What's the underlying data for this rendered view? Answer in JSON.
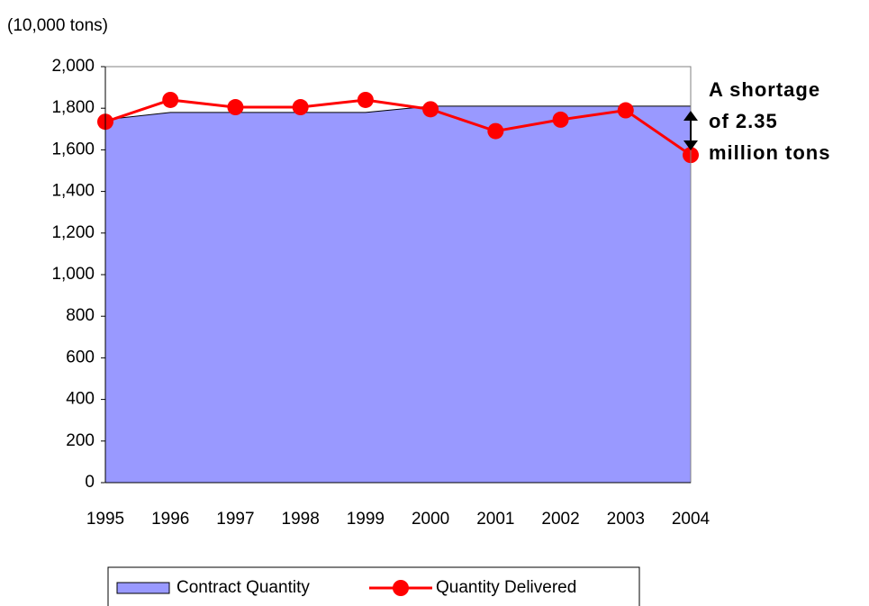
{
  "chart_data": {
    "type": "area-line",
    "y_unit_label": "(10,000 tons)",
    "categories": [
      "1995",
      "1996",
      "1997",
      "1998",
      "1999",
      "2000",
      "2001",
      "2002",
      "2003",
      "2004"
    ],
    "series": [
      {
        "name": "Contract Quantity",
        "type": "area",
        "color": "#9999ff",
        "values": [
          1745,
          1780,
          1780,
          1780,
          1780,
          1810,
          1810,
          1810,
          1810,
          1810
        ]
      },
      {
        "name": "Quantity Delivered",
        "type": "line",
        "color": "#ff0000",
        "values": [
          1735,
          1840,
          1805,
          1805,
          1840,
          1795,
          1690,
          1745,
          1790,
          1575
        ]
      }
    ],
    "ylim": [
      0,
      2000
    ],
    "yticks": [
      0,
      200,
      400,
      600,
      800,
      {
        "value": 1000,
        "label": "1,000"
      },
      {
        "value": 1200,
        "label": "1,200"
      },
      {
        "value": 1400,
        "label": "1,400"
      },
      {
        "value": 1600,
        "label": "1,600"
      },
      {
        "value": 1800,
        "label": "1,800"
      },
      {
        "value": 2000,
        "label": "2,000"
      }
    ],
    "annotation": [
      "A shortage",
      "of 2.35",
      "million tons"
    ],
    "legend": "bottom"
  }
}
